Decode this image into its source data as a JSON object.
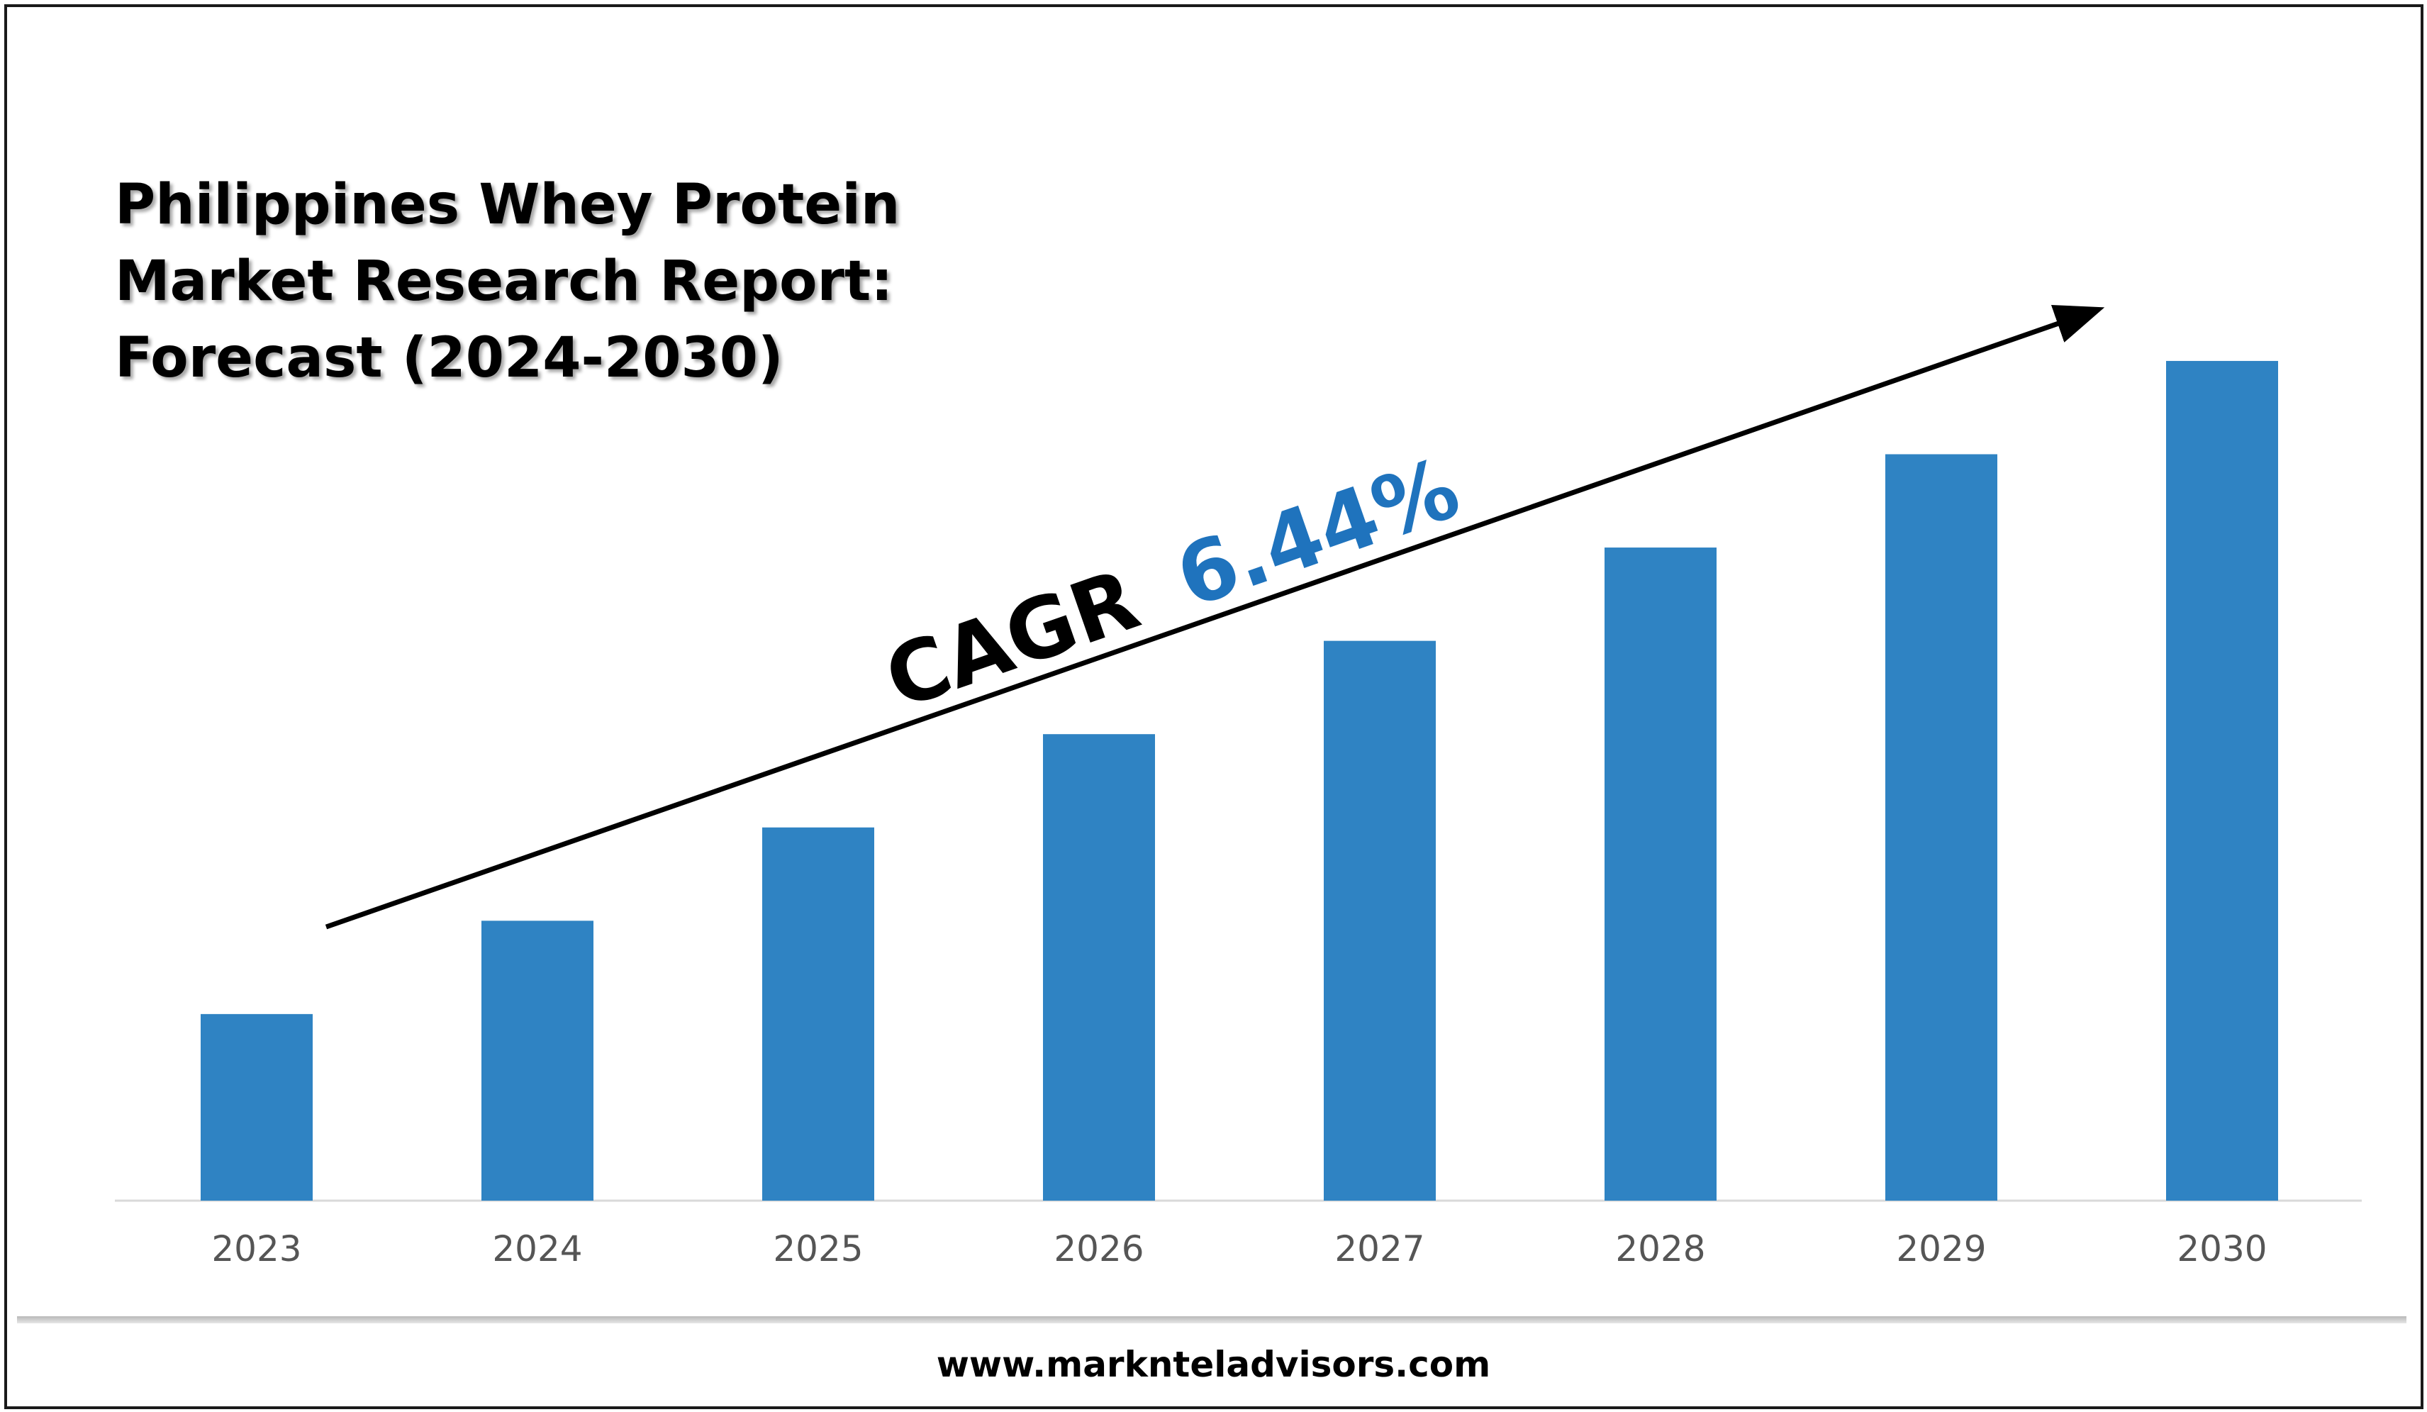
{
  "title_lines": [
    "Philippines Whey Protein",
    "Market Research Report:",
    "Forecast (2024-2030)"
  ],
  "annotation": {
    "prefix": "CAGR",
    "value": "6.44%"
  },
  "footer": {
    "url": "www.marknteladvisors.com"
  },
  "colors": {
    "bar": "#2f83c3",
    "cagr_value": "#1f73bd",
    "arrow": "#000000",
    "axis": "#d9d9d9"
  },
  "chart_data": {
    "type": "bar",
    "categories": [
      "2023",
      "2024",
      "2025",
      "2026",
      "2027",
      "2028",
      "2029",
      "2030"
    ],
    "values": [
      1.0,
      1.5,
      2.0,
      2.5,
      3.0,
      3.5,
      4.0,
      4.5
    ],
    "ylim": [
      0,
      4.8
    ],
    "grid": false,
    "legend": "none"
  }
}
